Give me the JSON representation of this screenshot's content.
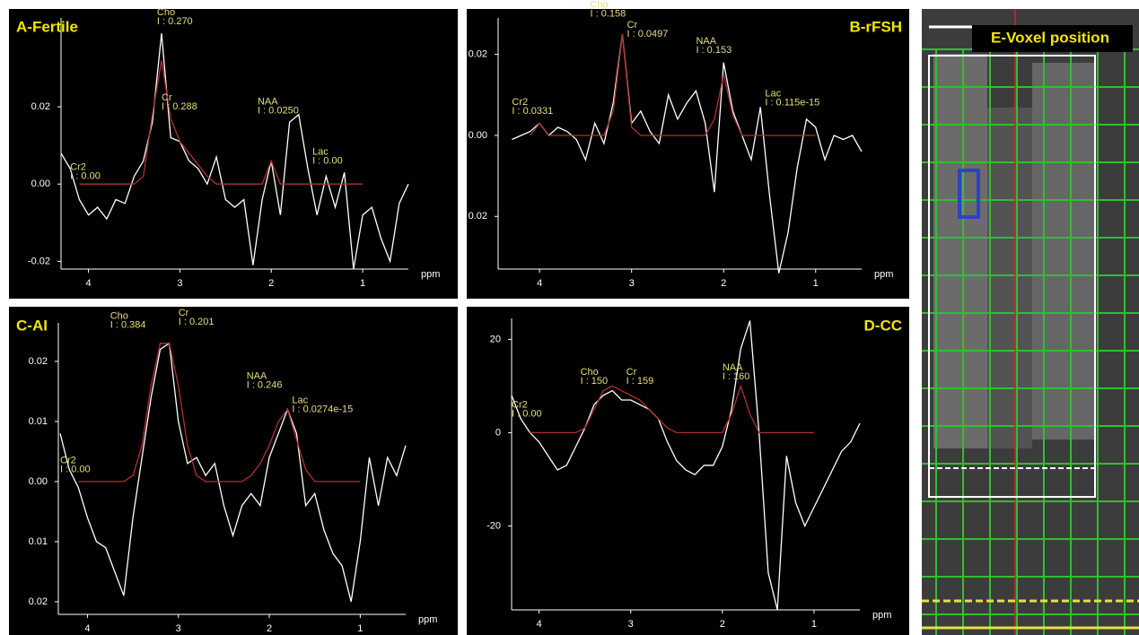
{
  "chart_data": [
    {
      "type": "line",
      "title": "A-Fertile",
      "x_label": "ppm",
      "x": [
        4.3,
        4.2,
        4.1,
        4.0,
        3.9,
        3.8,
        3.7,
        3.6,
        3.5,
        3.4,
        3.3,
        3.2,
        3.1,
        3.0,
        2.9,
        2.8,
        2.7,
        2.6,
        2.5,
        2.4,
        2.3,
        2.2,
        2.1,
        2.0,
        1.9,
        1.8,
        1.7,
        1.6,
        1.5,
        1.4,
        1.3,
        1.2,
        1.1,
        1.0,
        0.9,
        0.8,
        0.7,
        0.6,
        0.5
      ],
      "xlim": [
        4.3,
        0.5
      ],
      "xticks": [
        4,
        3,
        2,
        1
      ],
      "ylim": [
        -0.022,
        0.043
      ],
      "yticks": [
        0.02,
        {
          "value": 0,
          "label": "0.00"
        },
        -0.02
      ],
      "series": [
        {
          "color": "#ffffff",
          "values": [
            0.008,
            0.004,
            -0.004,
            -0.008,
            -0.006,
            -0.009,
            -0.004,
            -0.005,
            0.002,
            0.006,
            0.016,
            0.039,
            0.012,
            0.011,
            0.006,
            0.004,
            0,
            0.007,
            -0.004,
            -0.006,
            -0.004,
            -0.021,
            -0.004,
            0.006,
            -0.008,
            0.016,
            0.018,
            0.004,
            -0.008,
            0.002,
            -0.006,
            0.003,
            -0.022,
            -0.008,
            -0.006,
            -0.014,
            -0.02,
            -0.005,
            0
          ]
        },
        {
          "color": "#b03030",
          "values": [
            null,
            null,
            0,
            0,
            0,
            0,
            0,
            0,
            0,
            0.002,
            0.018,
            0.032,
            0.017,
            0.011,
            0.008,
            0.005,
            0.002,
            0,
            0,
            0,
            0,
            0,
            0,
            0.006,
            0,
            0,
            0,
            0,
            0,
            0,
            0,
            0,
            0,
            0,
            null,
            null,
            null,
            null,
            null
          ]
        }
      ],
      "annotations": [
        {
          "label": "Cho",
          "text": "I : 0.270",
          "x": 3.25,
          "y": 0.042
        },
        {
          "label": "Cr",
          "text": "I : 0.288",
          "x": 3.2,
          "y": 0.02
        },
        {
          "label": "NAA",
          "text": "I : 0.0250",
          "x": 2.15,
          "y": 0.019
        },
        {
          "label": "Lac",
          "text": "I : 0.00",
          "x": 1.55,
          "y": 0.006
        },
        {
          "label": "Cr2",
          "text": "I : 0.00",
          "x": 4.2,
          "y": 0.002
        }
      ]
    },
    {
      "type": "line",
      "title": "B-rFSH",
      "x_label": "ppm",
      "x": [
        4.3,
        4.2,
        4.1,
        4.0,
        3.9,
        3.8,
        3.7,
        3.6,
        3.5,
        3.4,
        3.3,
        3.2,
        3.1,
        3.0,
        2.9,
        2.8,
        2.7,
        2.6,
        2.5,
        2.4,
        2.3,
        2.2,
        2.1,
        2.0,
        1.9,
        1.8,
        1.7,
        1.6,
        1.5,
        1.4,
        1.3,
        1.2,
        1.1,
        1.0,
        0.9,
        0.8,
        0.7,
        0.6,
        0.5
      ],
      "xlim": [
        4.45,
        0.5
      ],
      "xticks": [
        4,
        3,
        2,
        1
      ],
      "ylim": [
        -0.033,
        0.029
      ],
      "yticks": [
        0.02,
        {
          "value": 0,
          "label": "0.00"
        },
        {
          "value": -0.02,
          "label": "0.02"
        }
      ],
      "series": [
        {
          "color": "#ffffff",
          "values": [
            -0.001,
            0,
            0.001,
            0.003,
            0,
            0.002,
            0.001,
            -0.001,
            -0.006,
            0.003,
            -0.002,
            0.008,
            0.025,
            0.003,
            0.006,
            0.001,
            -0.002,
            0.01,
            0.004,
            0.008,
            0.011,
            0.003,
            -0.014,
            0.018,
            0.006,
            0,
            -0.006,
            0.007,
            -0.015,
            -0.034,
            -0.024,
            -0.008,
            0.004,
            0.002,
            -0.006,
            0,
            -0.001,
            0,
            -0.004
          ]
        },
        {
          "color": "#b03030",
          "values": [
            null,
            null,
            0,
            0.003,
            0,
            0,
            0,
            0,
            0,
            0,
            0,
            0.006,
            0.025,
            0.002,
            0,
            0,
            0,
            0,
            0,
            0,
            0,
            0,
            0.004,
            0.015,
            0.005,
            0,
            0,
            0,
            0,
            0,
            0,
            0,
            0,
            0,
            null,
            null,
            null,
            null,
            null
          ]
        }
      ],
      "annotations": [
        {
          "label": "Cr2",
          "text": "I : 0.0331",
          "x": 4.3,
          "y": 0.006
        },
        {
          "label": "Cho",
          "text": "I : 0.158",
          "x": 3.45,
          "y": 0.03
        },
        {
          "label": "Cr",
          "text": "I : 0.0497",
          "x": 3.05,
          "y": 0.025
        },
        {
          "label": "NAA",
          "text": "I : 0.153",
          "x": 2.3,
          "y": 0.021
        },
        {
          "label": "Lac",
          "text": "I : 0.115e-15",
          "x": 1.55,
          "y": 0.008
        }
      ]
    },
    {
      "type": "line",
      "title": "C-AI",
      "x_label": "ppm",
      "x": [
        4.3,
        4.2,
        4.1,
        4.0,
        3.9,
        3.8,
        3.7,
        3.6,
        3.5,
        3.4,
        3.3,
        3.2,
        3.1,
        3.0,
        2.9,
        2.8,
        2.7,
        2.6,
        2.5,
        2.4,
        2.3,
        2.2,
        2.1,
        2.0,
        1.9,
        1.8,
        1.7,
        1.6,
        1.5,
        1.4,
        1.3,
        1.2,
        1.1,
        1.0,
        0.9,
        0.8,
        0.7,
        0.6,
        0.5
      ],
      "xlim": [
        4.32,
        0.5
      ],
      "xticks": [
        4,
        3,
        2,
        1
      ],
      "ylim": [
        -0.0221,
        0.0264
      ],
      "yticks": [
        0.02,
        0.01,
        {
          "value": 0,
          "label": "0.00"
        },
        {
          "value": -0.01,
          "label": "0.01"
        },
        {
          "value": -0.02,
          "label": "0.02"
        }
      ],
      "series": [
        {
          "color": "#ffffff",
          "values": [
            0.008,
            0.002,
            -0.001,
            -0.006,
            -0.01,
            -0.011,
            -0.015,
            -0.019,
            -0.006,
            0.004,
            0.014,
            0.022,
            0.023,
            0.01,
            0.003,
            0.004,
            0.001,
            0.003,
            -0.004,
            -0.009,
            -0.004,
            -0.002,
            -0.004,
            0.004,
            0.008,
            0.012,
            0.008,
            -0.004,
            -0.002,
            -0.008,
            -0.012,
            -0.014,
            -0.02,
            -0.01,
            0.004,
            -0.004,
            0.004,
            0.001,
            0.006
          ]
        },
        {
          "color": "#b03030",
          "values": [
            null,
            null,
            0,
            0,
            0,
            0,
            0,
            0,
            0.001,
            0.006,
            0.016,
            0.023,
            0.023,
            0.016,
            0.006,
            0.001,
            0,
            0,
            0,
            0,
            0,
            0.001,
            0.003,
            0.006,
            0.01,
            0.012,
            0.007,
            0.002,
            0,
            0,
            0,
            0,
            0,
            0,
            null,
            null,
            null,
            null,
            null
          ]
        }
      ],
      "annotations": [
        {
          "label": "Cho",
          "text": "I : 0.384",
          "x": 3.75,
          "y": 0.026
        },
        {
          "label": "Cr",
          "text": "I : 0.201",
          "x": 3.0,
          "y": 0.0265
        },
        {
          "label": "NAA",
          "text": "I : 0.246",
          "x": 2.25,
          "y": 0.016
        },
        {
          "label": "Lac",
          "text": "I : 0.0274e-15",
          "x": 1.75,
          "y": 0.012
        },
        {
          "label": "Cr2",
          "text": "I : 0.00",
          "x": 4.3,
          "y": 0.002
        }
      ]
    },
    {
      "type": "line",
      "title": "D-CC",
      "x_label": "ppm",
      "x": [
        4.3,
        4.2,
        4.1,
        4.0,
        3.9,
        3.8,
        3.7,
        3.6,
        3.5,
        3.4,
        3.3,
        3.2,
        3.1,
        3.0,
        2.9,
        2.8,
        2.7,
        2.6,
        2.5,
        2.4,
        2.3,
        2.2,
        2.1,
        2.0,
        1.9,
        1.8,
        1.7,
        1.6,
        1.5,
        1.4,
        1.3,
        1.2,
        1.1,
        1.0,
        0.9,
        0.8,
        0.7,
        0.6,
        0.5
      ],
      "xlim": [
        4.3,
        0.5
      ],
      "xticks": [
        4,
        3,
        2,
        1
      ],
      "ylim": [
        -38,
        24.5
      ],
      "yticks": [
        20,
        0,
        -20
      ],
      "series": [
        {
          "color": "#ffffff",
          "values": [
            8,
            3,
            0,
            -2,
            -5,
            -8,
            -7,
            -3,
            1,
            6,
            8,
            9,
            7,
            7,
            6,
            5,
            3,
            -2,
            -6,
            -8,
            -9,
            -7,
            -7,
            -3,
            5,
            18,
            24,
            0,
            -30,
            -38,
            -5,
            -15,
            -20,
            -16,
            -12,
            -8,
            -4,
            -2,
            2
          ]
        },
        {
          "color": "#b03030",
          "values": [
            null,
            null,
            0,
            0,
            0,
            0,
            0,
            0,
            1,
            5,
            9,
            10,
            9,
            8,
            7,
            5,
            3,
            1,
            0,
            0,
            0,
            0,
            0,
            0,
            4,
            10,
            4,
            0,
            0,
            0,
            0,
            0,
            0,
            0,
            null,
            null,
            null,
            null,
            null
          ]
        }
      ],
      "annotations": [
        {
          "label": "Cr2",
          "text": "I : 0.00",
          "x": 4.3,
          "y": 4
        },
        {
          "label": "Cho",
          "text": "I : 150",
          "x": 3.55,
          "y": 11
        },
        {
          "label": "Cr",
          "text": "I : 159",
          "x": 3.05,
          "y": 11
        },
        {
          "label": "NAA",
          "text": "I : 160",
          "x": 2.0,
          "y": 12
        }
      ]
    }
  ],
  "image_panel": {
    "title": "E-Voxel position"
  }
}
